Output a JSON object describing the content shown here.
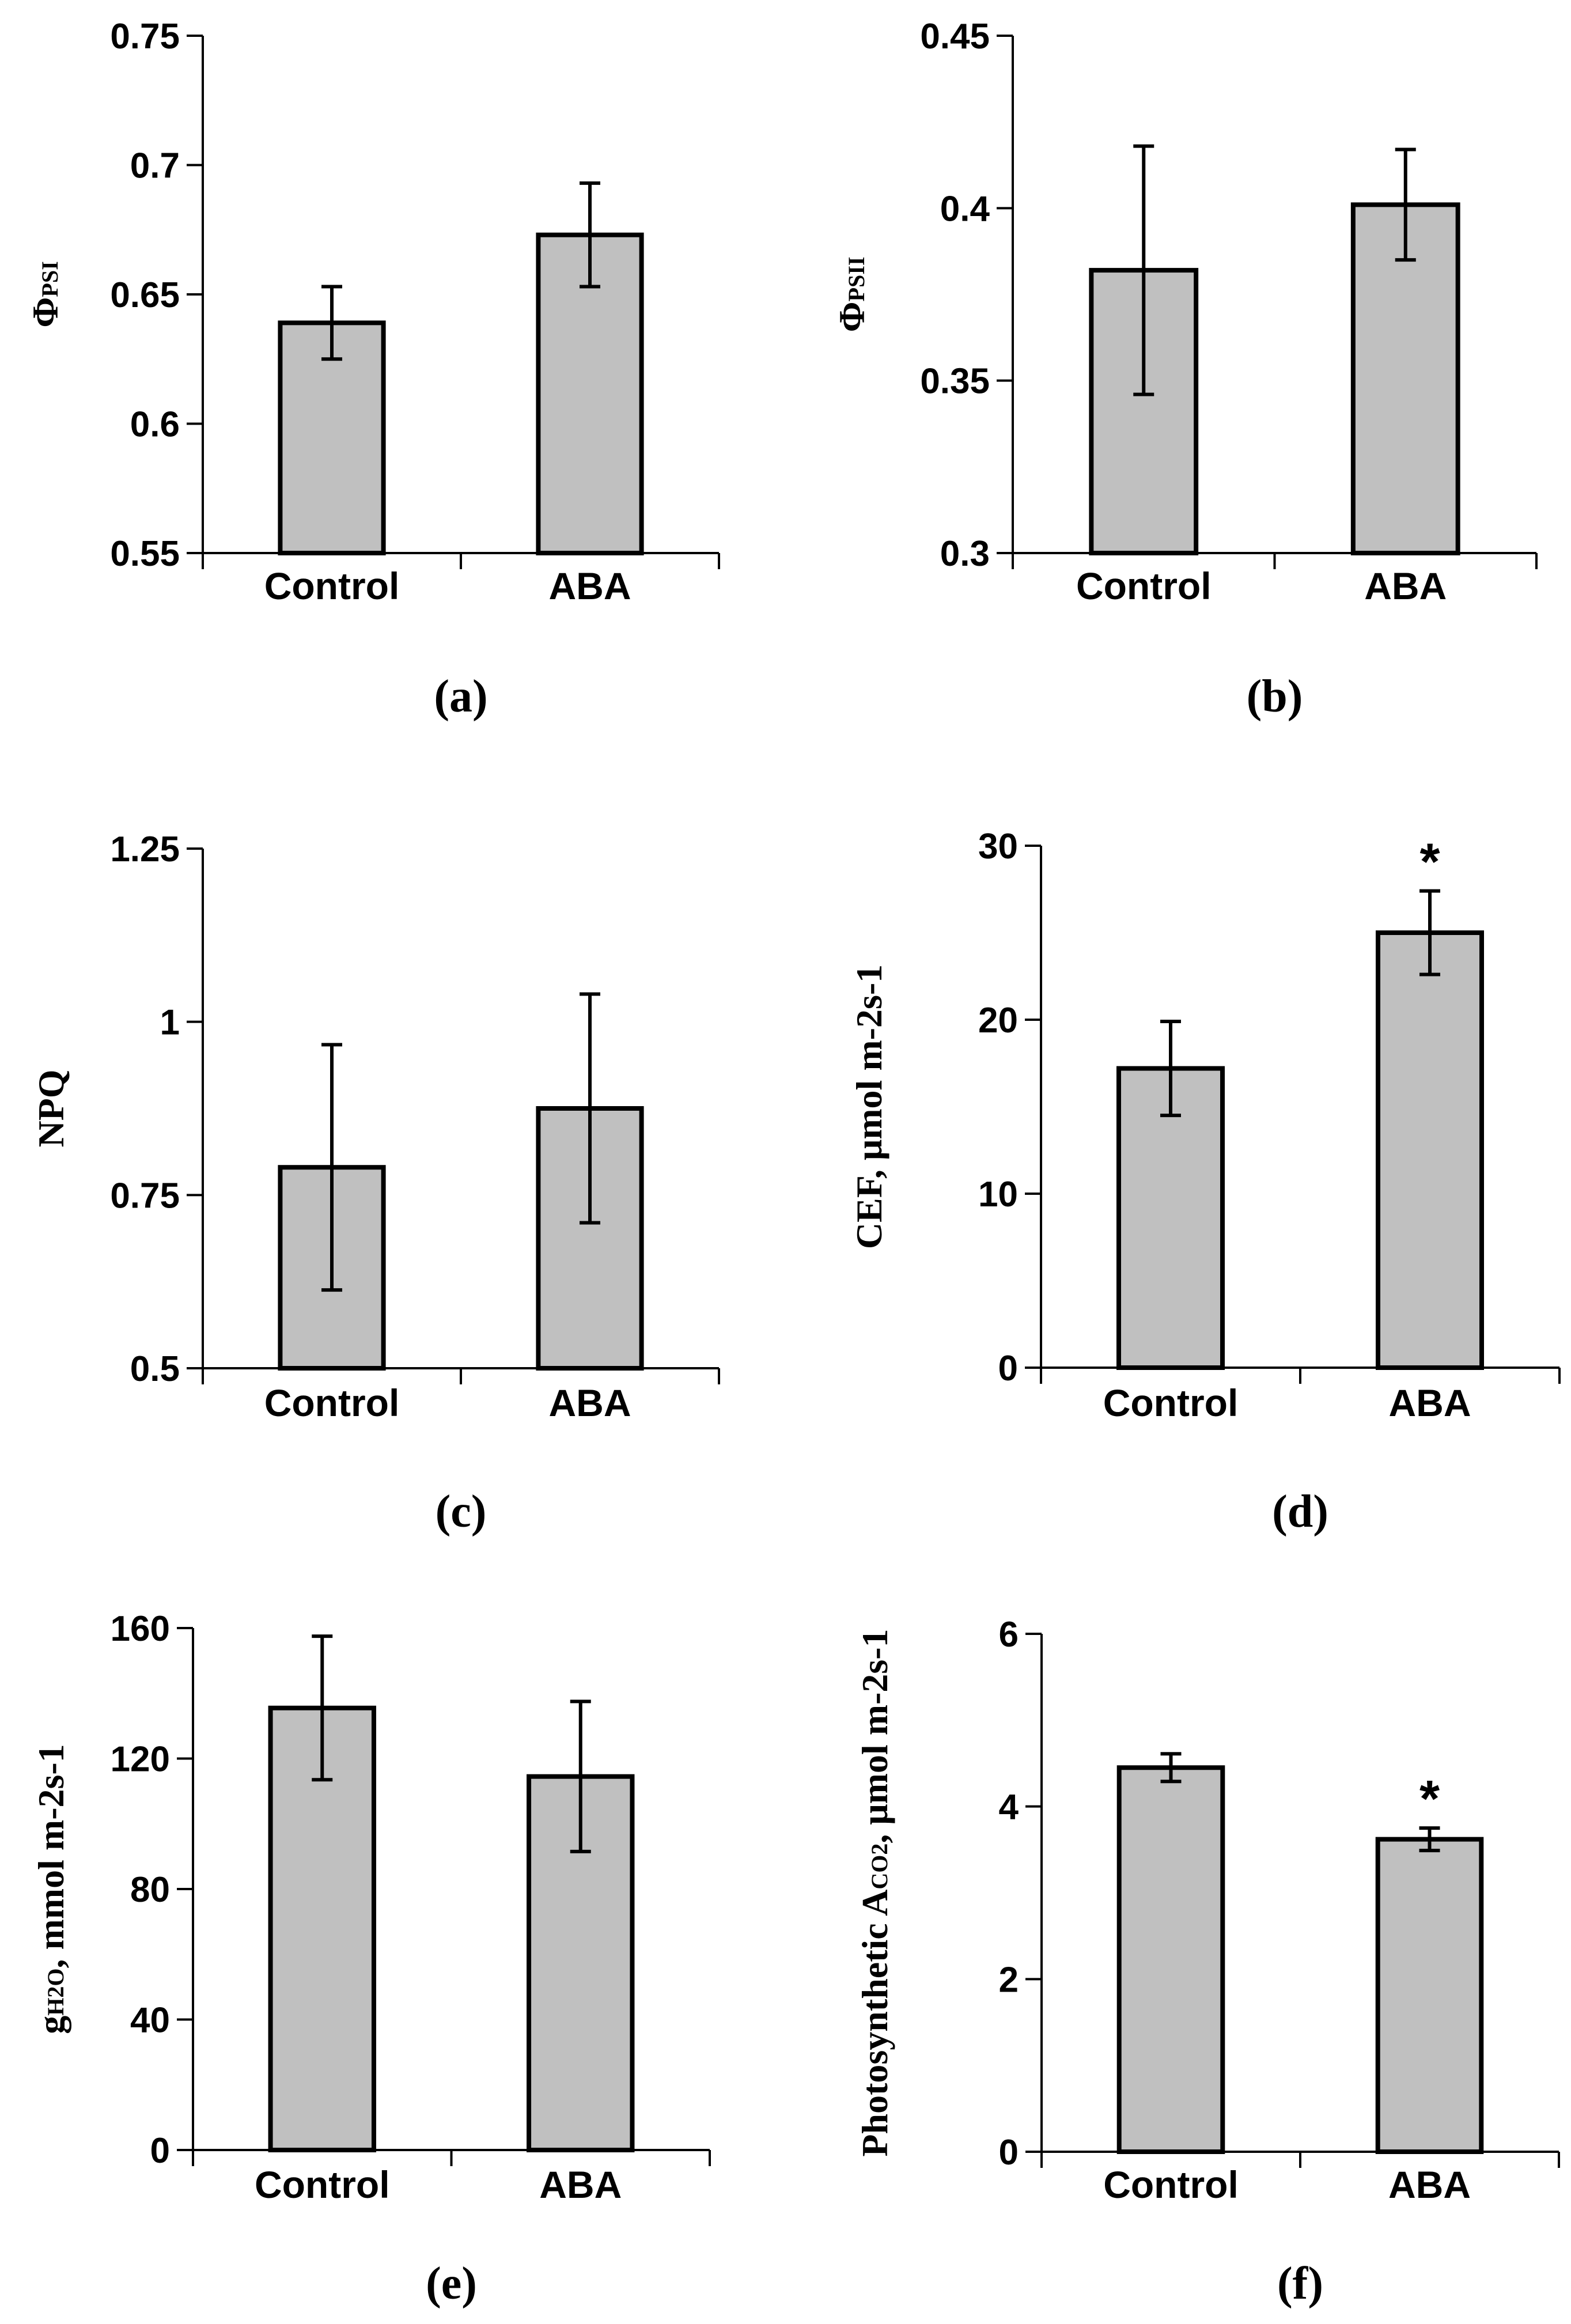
{
  "chart_data": [
    {
      "type": "bar",
      "panel": "(a)",
      "ylabel_main": "Φ",
      "ylabel_sub": "PSI",
      "ylabel_rest": "",
      "ylim": [
        0.55,
        0.75
      ],
      "yticks": [
        "0.55",
        "0.6",
        "0.65",
        "0.7",
        "0.75"
      ],
      "yticks_values": [
        0.55,
        0.6,
        0.65,
        0.7,
        0.75
      ],
      "categories": [
        "Control",
        "ABA"
      ],
      "values": [
        0.639,
        0.673
      ],
      "errors": [
        0.014,
        0.02
      ],
      "significance": [
        "",
        ""
      ]
    },
    {
      "type": "bar",
      "panel": "(b)",
      "ylabel_main": "Φ",
      "ylabel_sub": "PSII",
      "ylabel_rest": "",
      "ylim": [
        0.3,
        0.45
      ],
      "yticks": [
        "0.3",
        "0.35",
        "0.4",
        "0.45"
      ],
      "yticks_values": [
        0.3,
        0.35,
        0.4,
        0.45
      ],
      "categories": [
        "Control",
        "ABA"
      ],
      "values": [
        0.382,
        0.401
      ],
      "errors": [
        0.036,
        0.016
      ],
      "significance": [
        "",
        ""
      ]
    },
    {
      "type": "bar",
      "panel": "(c)",
      "ylabel_main": "NPQ",
      "ylabel_sub": "",
      "ylabel_rest": "",
      "ylim": [
        0.5,
        1.25
      ],
      "yticks": [
        "0.5",
        "0.75",
        "1",
        "1.25"
      ],
      "yticks_values": [
        0.5,
        0.75,
        1.0,
        1.25
      ],
      "categories": [
        "Control",
        "ABA"
      ],
      "values": [
        0.79,
        0.875
      ],
      "errors": [
        0.177,
        0.165
      ],
      "significance": [
        "",
        ""
      ]
    },
    {
      "type": "bar",
      "panel": "(d)",
      "ylabel_main": "CEF, μmol m",
      "ylabel_sub": "",
      "ylabel_rest": "-2s-1",
      "ylim": [
        0,
        30
      ],
      "yticks": [
        "0",
        "10",
        "20",
        "30"
      ],
      "yticks_values": [
        0,
        10,
        20,
        30
      ],
      "categories": [
        "Control",
        "ABA"
      ],
      "values": [
        17.2,
        25.0
      ],
      "errors": [
        2.7,
        2.4
      ],
      "significance": [
        "",
        "*"
      ]
    },
    {
      "type": "bar",
      "panel": "(e)",
      "ylabel_main": "g",
      "ylabel_sub": "H2O",
      "ylabel_rest": ", mmol m-2s-1",
      "ylim": [
        0,
        160
      ],
      "yticks": [
        "0",
        "40",
        "80",
        "120",
        "160"
      ],
      "yticks_values": [
        0,
        40,
        80,
        120,
        160
      ],
      "categories": [
        "Control",
        "ABA"
      ],
      "values": [
        135.5,
        114.5
      ],
      "errors": [
        22,
        23
      ],
      "significance": [
        "",
        ""
      ]
    },
    {
      "type": "bar",
      "panel": "(f)",
      "ylabel_main": "Photosynthetic A",
      "ylabel_sub": "CO2",
      "ylabel_rest": ", μmol m-2s-1",
      "ylim": [
        0,
        6
      ],
      "yticks": [
        "0",
        "2",
        "4",
        "6"
      ],
      "yticks_values": [
        0,
        2,
        4,
        6
      ],
      "categories": [
        "Control",
        "ABA"
      ],
      "values": [
        4.45,
        3.62
      ],
      "errors": [
        0.16,
        0.13
      ],
      "significance": [
        "",
        "*"
      ]
    }
  ],
  "colors": {
    "bar_fill": "#c0c0c0",
    "stroke": "#000000"
  }
}
